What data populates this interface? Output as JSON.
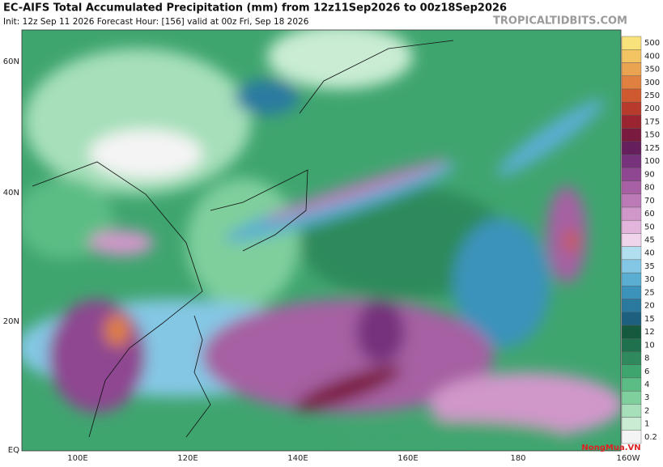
{
  "header": {
    "title": "EC-AIFS Total Accumulated Precipitation (mm) from 12z11Sep2026 to 00z18Sep2026",
    "subtitle": "Init: 12z Sep 11 2026   Forecast Hour: [156]   valid at 00z Fri, Sep 18 2026",
    "site": "TROPICALTIDBITS.COM"
  },
  "map": {
    "lat_labels": [
      "60N",
      "40N",
      "20N",
      "EQ"
    ],
    "lon_labels": [
      "100E",
      "120E",
      "140E",
      "160E",
      "180",
      "160W"
    ]
  },
  "colorbar": {
    "levels": [
      {
        "value": 0.2,
        "color": "#f4f4f4"
      },
      {
        "value": 1,
        "color": "#c9ecd3"
      },
      {
        "value": 2,
        "color": "#a6dfba"
      },
      {
        "value": 3,
        "color": "#7fcf9c"
      },
      {
        "value": 4,
        "color": "#5cbd84"
      },
      {
        "value": 6,
        "color": "#3fa56f"
      },
      {
        "value": 8,
        "color": "#2e8a5c"
      },
      {
        "value": 10,
        "color": "#1f704c"
      },
      {
        "value": 12,
        "color": "#15593f"
      },
      {
        "value": 15,
        "color": "#1d5f7f"
      },
      {
        "value": 20,
        "color": "#2a7aa0"
      },
      {
        "value": 25,
        "color": "#3b93bb"
      },
      {
        "value": 30,
        "color": "#5aaed2"
      },
      {
        "value": 35,
        "color": "#84c7e4"
      },
      {
        "value": 40,
        "color": "#b1dff0"
      },
      {
        "value": 45,
        "color": "#f0d4ec"
      },
      {
        "value": 50,
        "color": "#e3b4dc"
      },
      {
        "value": 60,
        "color": "#d097c9"
      },
      {
        "value": 70,
        "color": "#bc7ab7"
      },
      {
        "value": 80,
        "color": "#a660a3"
      },
      {
        "value": 90,
        "color": "#8e4790"
      },
      {
        "value": 100,
        "color": "#76337c"
      },
      {
        "value": 125,
        "color": "#651f5d"
      },
      {
        "value": 150,
        "color": "#7a1a3e"
      },
      {
        "value": 175,
        "color": "#9a2430"
      },
      {
        "value": 200,
        "color": "#b83a2c"
      },
      {
        "value": 250,
        "color": "#d05a30"
      },
      {
        "value": 300,
        "color": "#e08040"
      },
      {
        "value": 350,
        "color": "#eaa350"
      },
      {
        "value": 400,
        "color": "#f2c462"
      },
      {
        "value": 500,
        "color": "#f8e27c"
      }
    ]
  },
  "watermark": "NongMua.VN"
}
